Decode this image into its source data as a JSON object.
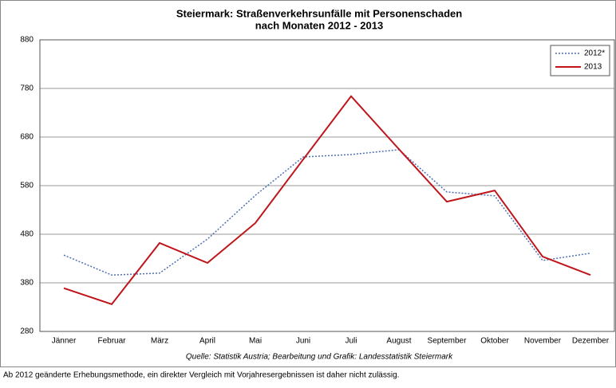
{
  "chart_data": {
    "type": "line",
    "title": [
      "Steiermark: Straßenverkehrsunfälle mit Personenschaden",
      "nach Monaten 2012 - 2013"
    ],
    "source": "Quelle: Statistik Austria; Bearbeitung und Grafik: Landesstatistik Steiermark",
    "footnote": "Ab 2012 geänderte Erhebungsmethode, ein direkter Vergleich mit Vorjahresergebnissen ist daher nicht zulässig.",
    "categories": [
      "Jänner",
      "Februar",
      "März",
      "April",
      "Mai",
      "Juni",
      "Juli",
      "August",
      "September",
      "Oktober",
      "November",
      "Dezember"
    ],
    "series": [
      {
        "name": "2012*",
        "color": "#4f6fb5",
        "dashed": true,
        "values": [
          437,
          396,
          400,
          470,
          560,
          639,
          644,
          654,
          567,
          559,
          426,
          441
        ]
      },
      {
        "name": "2013",
        "color": "#c0141b",
        "dashed": false,
        "values": [
          369,
          336,
          462,
          421,
          503,
          634,
          764,
          655,
          547,
          570,
          434,
          396
        ]
      }
    ],
    "ylim": [
      280,
      880
    ],
    "yticks": [
      280,
      380,
      480,
      580,
      680,
      780,
      880
    ],
    "grid": true,
    "legend": "top-right"
  }
}
